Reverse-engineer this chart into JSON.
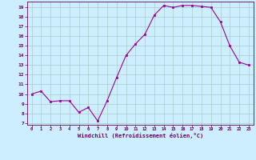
{
  "x": [
    0,
    1,
    2,
    3,
    4,
    5,
    6,
    7,
    8,
    9,
    10,
    11,
    12,
    13,
    14,
    15,
    16,
    17,
    18,
    19,
    20,
    21,
    22,
    23
  ],
  "y": [
    10,
    10.3,
    9.2,
    9.3,
    9.3,
    8.1,
    8.6,
    7.2,
    9.3,
    11.7,
    14.0,
    15.2,
    16.2,
    18.2,
    19.2,
    19.0,
    19.2,
    19.2,
    19.1,
    19.0,
    17.5,
    15.0,
    13.3,
    13.0
  ],
  "line_color": "#990099",
  "marker_color": "#990099",
  "bg_color": "#cceeff",
  "grid_color": "#aacccc",
  "xlabel": "Windchill (Refroidissement éolien,°C)",
  "ylabel_ticks": [
    7,
    8,
    9,
    10,
    11,
    12,
    13,
    14,
    15,
    16,
    17,
    18,
    19
  ],
  "xlim": [
    -0.5,
    23.5
  ],
  "ylim": [
    6.8,
    19.6
  ],
  "xticks": [
    0,
    1,
    2,
    3,
    4,
    5,
    6,
    7,
    8,
    9,
    10,
    11,
    12,
    13,
    14,
    15,
    16,
    17,
    18,
    19,
    20,
    21,
    22,
    23
  ],
  "axis_color": "#660066",
  "tick_color": "#660066",
  "label_color": "#660066"
}
